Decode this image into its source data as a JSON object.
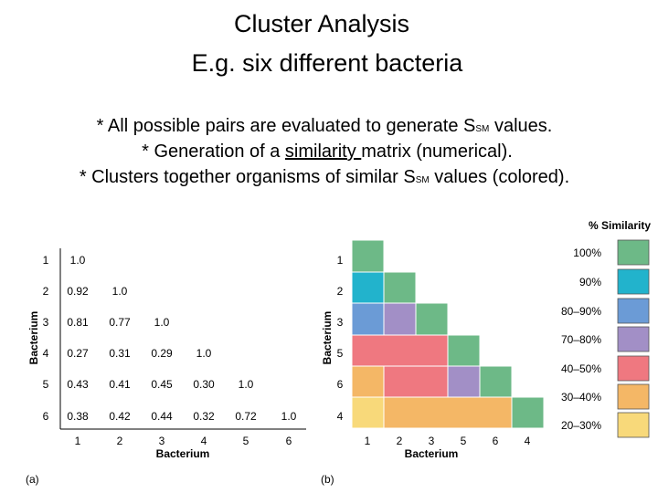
{
  "header": {
    "title_lines": [
      "Cluster Analysis",
      "E.g. six different bacteria"
    ]
  },
  "bullets": [
    {
      "before": "* All possible pairs are evaluated to generate S",
      "subscript": "SM",
      "after": " values."
    },
    {
      "before": "* Generation of a ",
      "underlined": "similarity ",
      "after": "matrix (numerical)."
    },
    {
      "before": "* Clusters together organisms of similar S",
      "subscript": "SM",
      "after": " values (colored)."
    }
  ],
  "panel_a": {
    "row_labels": [
      "1",
      "2",
      "3",
      "4",
      "5",
      "6"
    ],
    "rows": [
      [
        "1.0"
      ],
      [
        "0.92",
        "1.0"
      ],
      [
        "0.81",
        "0.77",
        "1.0"
      ],
      [
        "0.27",
        "0.31",
        "0.29",
        "1.0"
      ],
      [
        "0.43",
        "0.41",
        "0.45",
        "0.30",
        "1.0"
      ],
      [
        "0.38",
        "0.42",
        "0.44",
        "0.32",
        "0.72",
        "1.0"
      ]
    ],
    "column_labels": [
      "1",
      "2",
      "3",
      "4",
      "5",
      "6"
    ],
    "x_label": "Bacterium",
    "y_label": "Bacterium",
    "panel_label": "(a)"
  },
  "panel_b": {
    "row_labels": [
      "1",
      "2",
      "3",
      "5",
      "6",
      "4"
    ],
    "column_labels": [
      "1",
      "2",
      "3",
      "5",
      "6",
      "4"
    ],
    "x_label": "Bacterium",
    "y_label": "Bacterium",
    "panel_label": "(b)"
  },
  "legend": {
    "title": "% Similarity",
    "items": [
      "100%",
      "90%",
      "80–90%",
      "70–80%",
      "40–50%",
      "30–40%",
      "20–30%"
    ]
  }
}
